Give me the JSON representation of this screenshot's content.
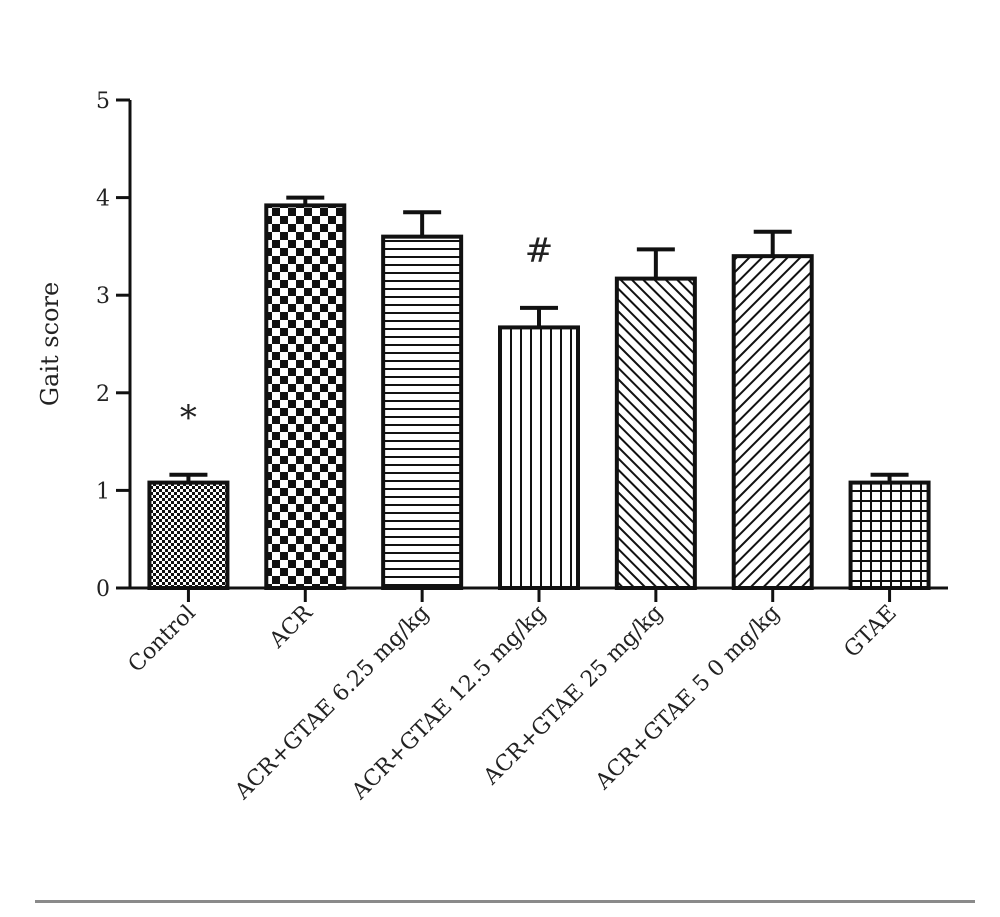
{
  "chart_data": {
    "type": "bar",
    "title": "",
    "xlabel": "",
    "ylabel": "Gait score",
    "ylim": [
      0,
      5
    ],
    "yticks": [
      "0",
      "1",
      "2",
      "3",
      "4",
      "5"
    ],
    "grid": false,
    "categories": [
      "Control",
      "ACR",
      "ACR+GTAE 6.25 mg/kg",
      "ACR+GTAE 12.5 mg/kg",
      "ACR+GTAE 25 mg/kg",
      "ACR+GTAE 5 0 mg/kg",
      "GTAE"
    ],
    "values": [
      1.08,
      3.92,
      3.6,
      2.67,
      3.17,
      3.4,
      1.08
    ],
    "errors": [
      0.08,
      0.08,
      0.25,
      0.2,
      0.3,
      0.25,
      0.08
    ],
    "patterns": [
      "pat-finecheck",
      "pat-checker",
      "pat-hlines",
      "pat-vlines",
      "pat-diag-fine",
      "pat-diag-wide",
      "pat-grid"
    ],
    "annotations": [
      "*",
      "",
      "",
      "#",
      "",
      "",
      ""
    ]
  }
}
